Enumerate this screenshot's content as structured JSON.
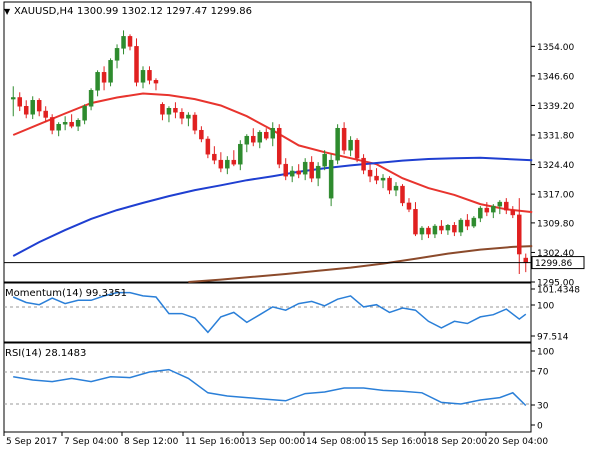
{
  "header": {
    "symbol_label": "XAUUSD,H4",
    "ohlc_label": "1300.99 1302.12 1297.47 1299.86"
  },
  "panels": {
    "momentum_label": "Momentum(14) 99.3351",
    "rsi_label": "RSI(14) 28.1483"
  },
  "colors": {
    "bull": "#2e8b2e",
    "bear": "#e02020",
    "sma_red": "#e8342e",
    "sma_blue": "#1f3fd1",
    "sma_brown": "#8b4a2b",
    "oscillator": "#2a7fd8",
    "price_tag_bg": "#ffffff",
    "grid": "#9a9a9a",
    "axis": "#000000",
    "text": "#000000"
  },
  "icons": {
    "collapse": "triangle-down-icon"
  },
  "chart_data": [
    {
      "type": "candlestick",
      "title": "XAUUSD,H4",
      "current_price": 1299.86,
      "current_price_label": "1299.86",
      "ylim": [
        1295.0,
        1361.6
      ],
      "y_ticks": [
        "1354.00",
        "1346.60",
        "1339.20",
        "1331.80",
        "1324.40",
        "1317.00",
        "1309.80",
        "1302.40",
        "1295.00"
      ],
      "x_labels": [
        "5 Sep 2017",
        "7 Sep 04:00",
        "8 Sep 12:00",
        "11 Sep 16:00",
        "13 Sep 00:00",
        "14 Sep 08:00",
        "15 Sep 16:00",
        "18 Sep 20:00",
        "20 Sep 04:00"
      ],
      "candles": [
        [
          1340.8,
          1344.0,
          1336.5,
          1341.2
        ],
        [
          1341.2,
          1342.5,
          1337.8,
          1339.0
        ],
        [
          1339.0,
          1340.5,
          1336.0,
          1337.0
        ],
        [
          1337.0,
          1341.5,
          1335.8,
          1340.5
        ],
        [
          1340.5,
          1341.0,
          1336.5,
          1337.8
        ],
        [
          1337.8,
          1339.0,
          1335.0,
          1336.2
        ],
        [
          1336.2,
          1337.0,
          1332.0,
          1333.0
        ],
        [
          1333.0,
          1335.0,
          1331.5,
          1334.5
        ],
        [
          1334.5,
          1336.5,
          1333.0,
          1335.0
        ],
        [
          1335.0,
          1337.0,
          1333.5,
          1334.0
        ],
        [
          1334.0,
          1336.0,
          1332.8,
          1335.5
        ],
        [
          1335.5,
          1339.5,
          1334.5,
          1339.0
        ],
        [
          1339.0,
          1343.5,
          1338.0,
          1343.0
        ],
        [
          1343.0,
          1348.0,
          1341.5,
          1347.5
        ],
        [
          1347.5,
          1349.0,
          1343.0,
          1345.0
        ],
        [
          1345.0,
          1351.0,
          1344.0,
          1350.5
        ],
        [
          1350.5,
          1354.5,
          1348.5,
          1353.5
        ],
        [
          1353.5,
          1358.0,
          1352.0,
          1356.5
        ],
        [
          1356.5,
          1357.0,
          1353.0,
          1354.0
        ],
        [
          1354.0,
          1356.0,
          1344.0,
          1345.0
        ],
        [
          1345.0,
          1349.0,
          1343.5,
          1348.0
        ],
        [
          1348.0,
          1349.0,
          1344.5,
          1345.5
        ],
        [
          1345.5,
          1346.0,
          1343.0,
          1344.8
        ],
        [
          1339.5,
          1340.0,
          1335.5,
          1337.0
        ],
        [
          1337.0,
          1339.0,
          1335.0,
          1338.5
        ],
        [
          1338.5,
          1340.0,
          1336.0,
          1337.5
        ],
        [
          1337.5,
          1338.5,
          1334.5,
          1336.0
        ],
        [
          1336.0,
          1337.5,
          1334.0,
          1336.8
        ],
        [
          1336.8,
          1337.5,
          1332.0,
          1333.0
        ],
        [
          1333.0,
          1334.0,
          1330.0,
          1330.8
        ],
        [
          1330.8,
          1331.5,
          1326.0,
          1327.0
        ],
        [
          1327.0,
          1329.0,
          1324.5,
          1325.5
        ],
        [
          1325.5,
          1327.5,
          1322.5,
          1323.5
        ],
        [
          1323.5,
          1326.5,
          1322.0,
          1325.5
        ],
        [
          1325.5,
          1328.0,
          1324.0,
          1324.5
        ],
        [
          1324.5,
          1330.5,
          1323.0,
          1329.5
        ],
        [
          1329.5,
          1332.0,
          1327.5,
          1331.5
        ],
        [
          1331.5,
          1333.5,
          1329.0,
          1330.0
        ],
        [
          1330.0,
          1333.0,
          1328.5,
          1332.5
        ],
        [
          1332.5,
          1333.5,
          1330.5,
          1331.0
        ],
        [
          1331.0,
          1335.0,
          1329.0,
          1333.5
        ],
        [
          1333.5,
          1334.5,
          1323.5,
          1324.5
        ],
        [
          1324.5,
          1326.0,
          1320.5,
          1321.5
        ],
        [
          1321.5,
          1324.0,
          1320.0,
          1322.8
        ],
        [
          1322.8,
          1324.5,
          1321.0,
          1322.0
        ],
        [
          1322.0,
          1326.0,
          1320.5,
          1325.0
        ],
        [
          1325.0,
          1326.5,
          1320.0,
          1321.0
        ],
        [
          1321.0,
          1325.0,
          1319.0,
          1324.0
        ],
        [
          1324.0,
          1328.0,
          1323.0,
          1327.0
        ],
        [
          1316.0,
          1327.0,
          1314.0,
          1325.5
        ],
        [
          1325.5,
          1334.5,
          1324.5,
          1333.5
        ],
        [
          1333.5,
          1335.0,
          1327.0,
          1328.0
        ],
        [
          1328.0,
          1331.5,
          1326.5,
          1330.5
        ],
        [
          1330.5,
          1331.0,
          1325.0,
          1326.0
        ],
        [
          1326.0,
          1327.0,
          1322.0,
          1323.0
        ],
        [
          1323.0,
          1324.5,
          1320.0,
          1321.5
        ],
        [
          1321.5,
          1323.5,
          1319.5,
          1320.5
        ],
        [
          1320.5,
          1322.0,
          1318.5,
          1321.0
        ],
        [
          1321.0,
          1321.5,
          1317.0,
          1318.0
        ],
        [
          1318.0,
          1320.0,
          1316.5,
          1319.0
        ],
        [
          1319.0,
          1319.5,
          1314.0,
          1314.8
        ],
        [
          1314.8,
          1316.0,
          1312.5,
          1313.2
        ],
        [
          1313.2,
          1315.0,
          1306.5,
          1307.0
        ],
        [
          1307.0,
          1309.0,
          1305.5,
          1308.5
        ],
        [
          1308.5,
          1309.0,
          1306.0,
          1307.0
        ],
        [
          1307.0,
          1309.5,
          1306.0,
          1309.0
        ],
        [
          1309.0,
          1310.5,
          1307.0,
          1308.0
        ],
        [
          1308.0,
          1309.5,
          1306.8,
          1309.2
        ],
        [
          1309.2,
          1310.0,
          1306.5,
          1307.5
        ],
        [
          1307.5,
          1311.0,
          1306.5,
          1310.5
        ],
        [
          1310.5,
          1312.0,
          1308.0,
          1309.0
        ],
        [
          1309.0,
          1311.5,
          1308.5,
          1311.0
        ],
        [
          1311.0,
          1314.0,
          1310.0,
          1313.5
        ],
        [
          1313.5,
          1315.0,
          1311.5,
          1312.5
        ],
        [
          1312.5,
          1314.5,
          1311.0,
          1314.0
        ],
        [
          1314.0,
          1315.5,
          1312.0,
          1315.0
        ],
        [
          1315.0,
          1316.0,
          1312.0,
          1313.0
        ],
        [
          1313.0,
          1314.0,
          1311.0,
          1311.8
        ],
        [
          1311.8,
          1316.0,
          1297.0,
          1302.0
        ],
        [
          1300.99,
          1302.12,
          1297.47,
          1299.86
        ]
      ],
      "series": [
        {
          "name": "",
          "color_key": "sma_red",
          "x": [
            0,
            4,
            8,
            12,
            16,
            20,
            24,
            28,
            32,
            36,
            40,
            44,
            48,
            52,
            56,
            60,
            64,
            68,
            72,
            76,
            80
          ],
          "values": [
            1331.8,
            1334.5,
            1337.2,
            1339.8,
            1341.2,
            1342.2,
            1341.8,
            1340.8,
            1339.2,
            1336.5,
            1333.0,
            1329.2,
            1327.5,
            1326.0,
            1324.5,
            1321.0,
            1318.5,
            1316.8,
            1314.5,
            1313.2,
            1312.5
          ]
        },
        {
          "name": "",
          "color_key": "sma_blue",
          "x": [
            0,
            4,
            8,
            12,
            16,
            20,
            24,
            28,
            32,
            36,
            40,
            44,
            48,
            52,
            56,
            60,
            64,
            68,
            72,
            76,
            80
          ],
          "values": [
            1301.5,
            1305.0,
            1308.0,
            1310.8,
            1313.0,
            1314.8,
            1316.5,
            1318.0,
            1319.2,
            1320.5,
            1321.5,
            1322.6,
            1323.5,
            1324.2,
            1324.8,
            1325.4,
            1325.8,
            1326.0,
            1326.1,
            1325.8,
            1325.5
          ]
        },
        {
          "name": "",
          "color_key": "sma_brown",
          "x": [
            27,
            32,
            37,
            42,
            47,
            52,
            57,
            62,
            67,
            72,
            77,
            80
          ],
          "values": [
            1295.0,
            1295.6,
            1296.3,
            1297.0,
            1297.8,
            1298.6,
            1299.6,
            1300.8,
            1302.1,
            1303.1,
            1303.8,
            1304.0
          ]
        }
      ]
    },
    {
      "type": "line",
      "title": "Momentum(14) 99.3351",
      "ylim": [
        97.0,
        101.9
      ],
      "y_ticks": [
        "101.4348",
        "100",
        "97.514"
      ],
      "reference_level": 100,
      "x": [
        0,
        2,
        4,
        6,
        8,
        10,
        12,
        14,
        16,
        18,
        20,
        22,
        24,
        26,
        28,
        30,
        32,
        34,
        36,
        38,
        40,
        42,
        44,
        46,
        48,
        50,
        52,
        54,
        56,
        58,
        60,
        62,
        64,
        66,
        68,
        70,
        72,
        74,
        76,
        78,
        79
      ],
      "values": [
        100.9,
        100.4,
        100.2,
        100.8,
        100.3,
        100.6,
        100.6,
        101.0,
        101.3,
        101.3,
        101.0,
        100.9,
        99.4,
        99.4,
        99.0,
        97.7,
        99.1,
        99.5,
        98.6,
        99.3,
        100.0,
        99.7,
        100.3,
        100.5,
        100.1,
        100.7,
        101.0,
        100.0,
        100.2,
        99.5,
        99.9,
        99.7,
        98.7,
        98.1,
        98.7,
        98.5,
        99.1,
        99.3,
        99.8,
        98.9,
        99.34
      ]
    },
    {
      "type": "line",
      "title": "RSI(14) 28.1483",
      "ylim": [
        0,
        100
      ],
      "y_ticks": [
        "100",
        "70",
        "30",
        "0"
      ],
      "reference_levels": [
        70,
        30
      ],
      "x": [
        0,
        3,
        6,
        9,
        12,
        15,
        18,
        21,
        24,
        27,
        30,
        33,
        36,
        39,
        42,
        45,
        48,
        51,
        54,
        57,
        60,
        63,
        66,
        69,
        72,
        75,
        77,
        79
      ],
      "values": [
        64,
        60,
        58,
        62,
        58,
        64,
        63,
        70,
        73,
        62,
        44,
        40,
        38,
        36,
        34,
        43,
        45,
        50,
        50,
        47,
        46,
        44,
        32,
        30,
        35,
        38,
        44,
        28.15
      ]
    }
  ]
}
